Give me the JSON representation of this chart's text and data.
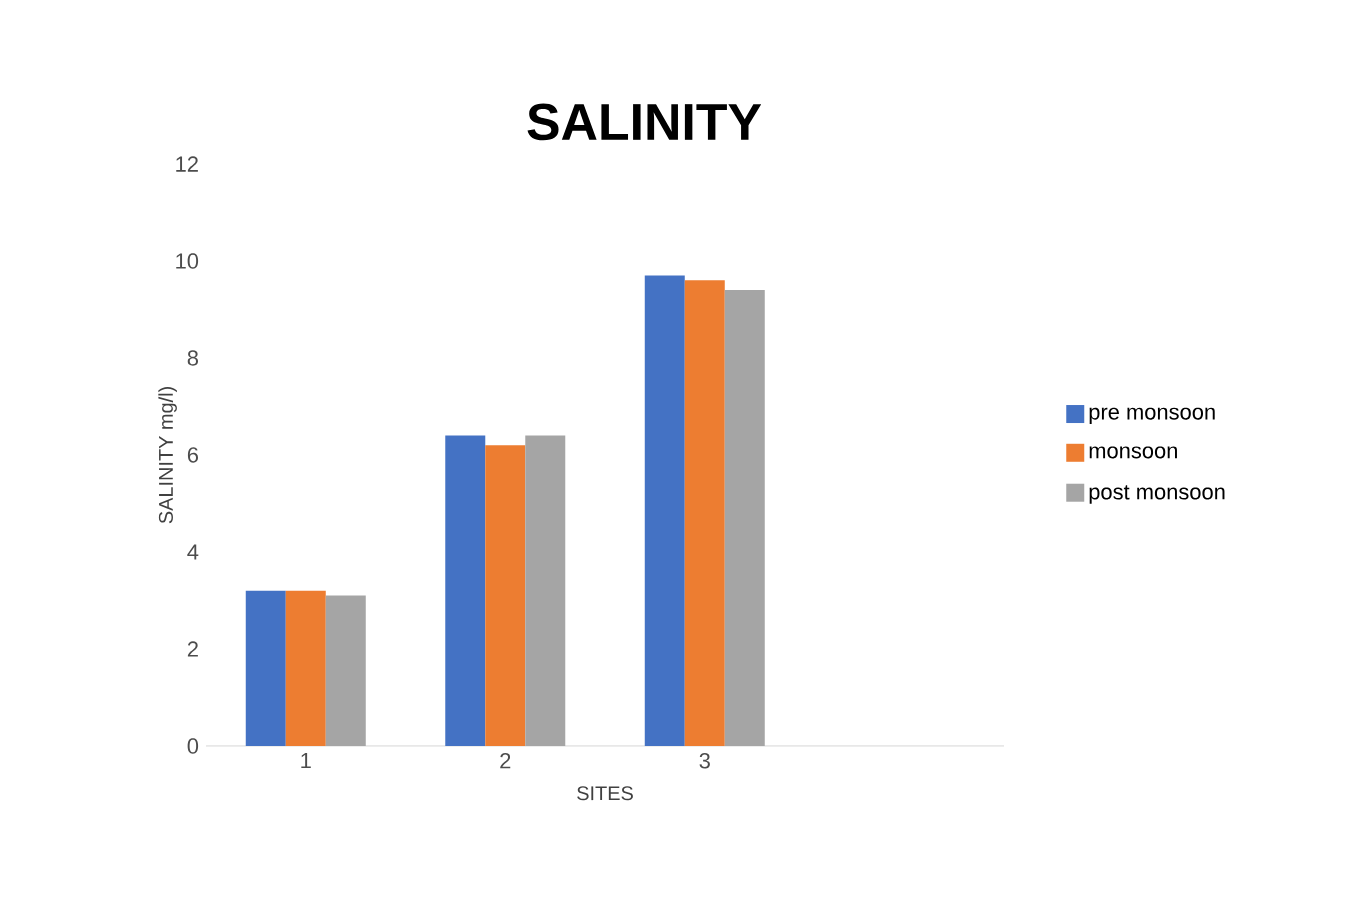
{
  "chart_data": {
    "type": "bar",
    "title": "SALINITY",
    "xlabel": "SITES",
    "ylabel": "SALINITY mg/l)",
    "categories": [
      "1",
      "2",
      "3",
      null
    ],
    "series": [
      {
        "name": "pre monsoon",
        "color": "#4472c4",
        "values": [
          3.2,
          6.4,
          9.7,
          null
        ]
      },
      {
        "name": "monsoon",
        "color": "#ed7d31",
        "values": [
          3.2,
          6.2,
          9.6,
          null
        ]
      },
      {
        "name": "post monsoon",
        "color": "#a5a5a5",
        "values": [
          3.1,
          6.4,
          9.4,
          null
        ]
      }
    ],
    "ylim": [
      0,
      12
    ],
    "yticks": [
      0,
      2,
      4,
      6,
      8,
      10,
      12
    ],
    "legend": "right"
  }
}
